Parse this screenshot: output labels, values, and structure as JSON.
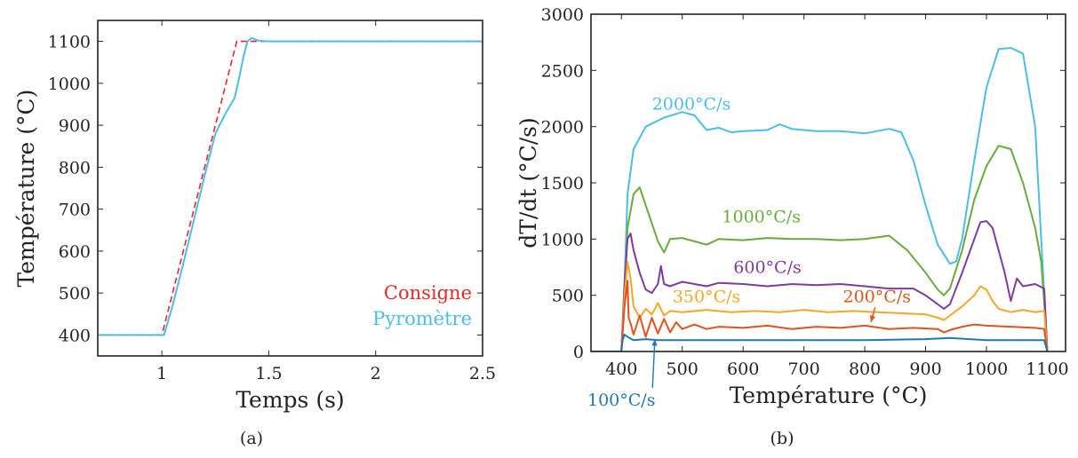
{
  "chart_data": [
    {
      "id": "a",
      "type": "line",
      "caption": "(a)",
      "xlabel": "Temps (s)",
      "ylabel": "Température (°C)",
      "xlim": [
        0.7,
        2.5
      ],
      "ylim": [
        350,
        1150
      ],
      "xticks": [
        {
          "value": 1,
          "label": "1"
        },
        {
          "value": 1.5,
          "label": "1.5"
        },
        {
          "value": 2,
          "label": "2"
        },
        {
          "value": 2.5,
          "label": "2.5"
        }
      ],
      "yticks": [
        {
          "value": 400,
          "label": "400"
        },
        {
          "value": 500,
          "label": "500"
        },
        {
          "value": 600,
          "label": "600"
        },
        {
          "value": 700,
          "label": "700"
        },
        {
          "value": 800,
          "label": "800"
        },
        {
          "value": 900,
          "label": "900"
        },
        {
          "value": 1000,
          "label": "1000"
        },
        {
          "value": 1100,
          "label": "1100"
        }
      ],
      "legend_position": "bottom-right",
      "series": [
        {
          "name": "Consigne",
          "color": "#e8262a",
          "dash": true,
          "x": [
            0.7,
            1.0,
            1.35,
            2.5
          ],
          "y": [
            400,
            400,
            1100,
            1100
          ]
        },
        {
          "name": "Pyromètre",
          "color": "#4cbde8",
          "dash": false,
          "x": [
            0.7,
            1.01,
            1.05,
            1.1,
            1.2,
            1.25,
            1.3,
            1.34,
            1.36,
            1.38,
            1.4,
            1.42,
            1.45,
            1.5,
            2.5
          ],
          "y": [
            400,
            400,
            470,
            570,
            780,
            880,
            930,
            965,
            1010,
            1060,
            1100,
            1108,
            1102,
            1100,
            1100
          ]
        }
      ]
    },
    {
      "id": "b",
      "type": "line",
      "caption": "(b)",
      "xlabel": "Température (°C)",
      "ylabel": "dT/dt (°C/s)",
      "xlim": [
        350,
        1130
      ],
      "ylim": [
        0,
        3000
      ],
      "xticks": [
        {
          "value": 400,
          "label": "400"
        },
        {
          "value": 500,
          "label": "500"
        },
        {
          "value": 600,
          "label": "600"
        },
        {
          "value": 700,
          "label": "700"
        },
        {
          "value": 800,
          "label": "800"
        },
        {
          "value": 900,
          "label": "900"
        },
        {
          "value": 1000,
          "label": "1000"
        },
        {
          "value": 1100,
          "label": "1100"
        }
      ],
      "yticks": [
        {
          "value": 0,
          "label": "0"
        },
        {
          "value": 500,
          "label": "500"
        },
        {
          "value": 1000,
          "label": "1000"
        },
        {
          "value": 1500,
          "label": "1500"
        },
        {
          "value": 2000,
          "label": "2000"
        },
        {
          "value": 2500,
          "label": "2500"
        },
        {
          "value": 3000,
          "label": "3000"
        }
      ],
      "series": [
        {
          "name": "2000°C/s",
          "color": "#4cbde8",
          "x": [
            350,
            400,
            405,
            410,
            420,
            440,
            470,
            500,
            520,
            540,
            560,
            580,
            600,
            640,
            660,
            680,
            720,
            760,
            800,
            840,
            860,
            880,
            900,
            920,
            940,
            950,
            960,
            980,
            1000,
            1020,
            1040,
            1060,
            1080,
            1090,
            1098,
            1100
          ],
          "y": [
            0,
            0,
            600,
            1400,
            1800,
            2000,
            2080,
            2130,
            2100,
            1970,
            1990,
            1950,
            1960,
            1970,
            2020,
            1980,
            1960,
            1960,
            1940,
            1980,
            1950,
            1700,
            1300,
            950,
            780,
            800,
            1000,
            1700,
            2350,
            2690,
            2700,
            2650,
            2000,
            1000,
            200,
            0
          ]
        },
        {
          "name": "1000°C/s",
          "color": "#6aaa3a",
          "x": [
            350,
            400,
            405,
            410,
            420,
            430,
            440,
            460,
            470,
            480,
            500,
            520,
            540,
            560,
            600,
            640,
            680,
            720,
            760,
            800,
            840,
            870,
            900,
            920,
            930,
            940,
            960,
            980,
            1000,
            1020,
            1040,
            1060,
            1080,
            1090,
            1098,
            1100
          ],
          "y": [
            0,
            0,
            500,
            1100,
            1400,
            1460,
            1300,
            980,
            880,
            1000,
            1010,
            980,
            950,
            1000,
            990,
            1010,
            1000,
            1000,
            990,
            1000,
            1030,
            900,
            700,
            550,
            500,
            560,
            900,
            1350,
            1650,
            1830,
            1800,
            1500,
            1100,
            800,
            200,
            0
          ]
        },
        {
          "name": "600°C/s",
          "color": "#7e3a9f",
          "x": [
            350,
            400,
            405,
            410,
            415,
            420,
            430,
            440,
            450,
            460,
            465,
            470,
            480,
            500,
            520,
            540,
            560,
            600,
            640,
            680,
            720,
            760,
            800,
            840,
            880,
            900,
            920,
            930,
            940,
            960,
            980,
            990,
            1000,
            1010,
            1020,
            1030,
            1040,
            1050,
            1060,
            1080,
            1095,
            1100
          ],
          "y": [
            0,
            0,
            600,
            1000,
            1050,
            900,
            700,
            550,
            520,
            600,
            760,
            600,
            580,
            620,
            600,
            580,
            610,
            600,
            580,
            600,
            590,
            600,
            580,
            560,
            560,
            500,
            420,
            380,
            420,
            700,
            1000,
            1150,
            1160,
            1100,
            900,
            700,
            450,
            650,
            580,
            600,
            560,
            0
          ]
        },
        {
          "name": "350°C/s",
          "color": "#f5a623",
          "x": [
            350,
            400,
            405,
            410,
            415,
            420,
            430,
            440,
            450,
            460,
            470,
            480,
            500,
            540,
            580,
            620,
            660,
            700,
            740,
            780,
            820,
            860,
            900,
            920,
            930,
            940,
            960,
            980,
            990,
            1000,
            1010,
            1020,
            1040,
            1060,
            1080,
            1095,
            1100
          ],
          "y": [
            0,
            0,
            500,
            800,
            650,
            400,
            300,
            380,
            330,
            430,
            320,
            360,
            350,
            370,
            350,
            360,
            350,
            370,
            350,
            360,
            350,
            340,
            330,
            300,
            280,
            320,
            400,
            500,
            580,
            550,
            450,
            380,
            350,
            370,
            350,
            360,
            0
          ]
        },
        {
          "name": "200°C/s",
          "color": "#e2521d",
          "x": [
            350,
            400,
            405,
            410,
            412,
            415,
            420,
            430,
            440,
            450,
            460,
            470,
            480,
            490,
            500,
            520,
            540,
            560,
            600,
            640,
            680,
            720,
            760,
            800,
            840,
            880,
            920,
            930,
            940,
            960,
            980,
            1000,
            1040,
            1080,
            1095,
            1100
          ],
          "y": [
            0,
            0,
            400,
            630,
            300,
            250,
            150,
            320,
            130,
            300,
            160,
            290,
            170,
            260,
            200,
            240,
            200,
            220,
            210,
            230,
            200,
            220,
            210,
            230,
            200,
            210,
            200,
            170,
            190,
            220,
            240,
            230,
            220,
            210,
            200,
            0
          ]
        },
        {
          "name": "100°C/s",
          "color": "#1f78b4",
          "x": [
            350,
            400,
            402,
            405,
            410,
            420,
            440,
            460,
            500,
            600,
            700,
            800,
            900,
            940,
            1000,
            1050,
            1095,
            1100
          ],
          "y": [
            0,
            0,
            100,
            150,
            130,
            100,
            110,
            100,
            100,
            100,
            100,
            100,
            110,
            120,
            100,
            100,
            100,
            0
          ]
        }
      ],
      "annotations": [
        {
          "text": "2000°C/s",
          "series": 0,
          "x": 515,
          "y": 2150
        },
        {
          "text": "1000°C/s",
          "series": 1,
          "x": 630,
          "y": 1150
        },
        {
          "text": "600°C/s",
          "series": 2,
          "x": 640,
          "y": 700
        },
        {
          "text": "350°C/s",
          "series": 3,
          "x": 540,
          "y": 440
        },
        {
          "text": "200°C/s",
          "series": 4,
          "x": 820,
          "y": 440,
          "arrow_to": {
            "x": 810,
            "y": 260
          }
        },
        {
          "text": "100°C/s",
          "series": 5,
          "x": 400,
          "y": -480,
          "arrow_to": {
            "x": 455,
            "y": 110
          }
        }
      ]
    }
  ]
}
